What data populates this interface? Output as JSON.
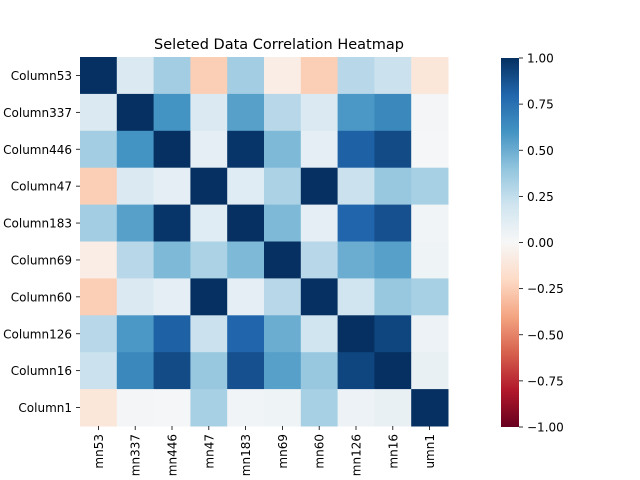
{
  "chart_data": {
    "type": "heatmap",
    "title": "Seleted Data  Correlation Heatmap",
    "xlabel": "",
    "ylabel": "",
    "labels": [
      "Column53",
      "Column337",
      "Column446",
      "Column47",
      "Column183",
      "Column69",
      "Column60",
      "Column126",
      "Column16",
      "Column1"
    ],
    "x_tick_labels_visible": [
      "mn53",
      "mn337",
      "mn446",
      "mn47",
      "mn183",
      "mn69",
      "mn60",
      "mn126",
      "mn16",
      "umn1"
    ],
    "y_tick_labels": [
      "Column53",
      "Column337",
      "Column446",
      "Column47",
      "Column183",
      "Column69",
      "Column60",
      "Column126",
      "Column16",
      "Column1"
    ],
    "matrix": [
      [
        1.0,
        0.15,
        0.35,
        -0.25,
        0.35,
        -0.07,
        -0.25,
        0.28,
        0.22,
        -0.12
      ],
      [
        0.15,
        1.0,
        0.6,
        0.15,
        0.55,
        0.28,
        0.15,
        0.58,
        0.65,
        0.02
      ],
      [
        0.35,
        0.6,
        1.0,
        0.1,
        0.98,
        0.45,
        0.1,
        0.82,
        0.9,
        0.01
      ],
      [
        -0.25,
        0.15,
        0.1,
        1.0,
        0.12,
        0.32,
        1.0,
        0.22,
        0.38,
        0.33
      ],
      [
        0.35,
        0.55,
        0.98,
        0.12,
        1.0,
        0.45,
        0.1,
        0.8,
        0.88,
        0.03
      ],
      [
        -0.07,
        0.28,
        0.45,
        0.32,
        0.45,
        1.0,
        0.28,
        0.5,
        0.55,
        0.05
      ],
      [
        -0.25,
        0.15,
        0.1,
        1.0,
        0.1,
        0.28,
        1.0,
        0.2,
        0.38,
        0.33
      ],
      [
        0.28,
        0.58,
        0.82,
        0.22,
        0.8,
        0.5,
        0.2,
        1.0,
        0.92,
        0.06
      ],
      [
        0.22,
        0.65,
        0.9,
        0.38,
        0.88,
        0.55,
        0.38,
        0.92,
        1.0,
        0.08
      ],
      [
        -0.12,
        0.02,
        0.01,
        0.33,
        0.03,
        0.05,
        0.33,
        0.06,
        0.08,
        1.0
      ]
    ],
    "colorbar": {
      "colormap": "RdBu",
      "vmin": -1.0,
      "vmax": 1.0,
      "ticks": [
        "1.00",
        "0.75",
        "0.50",
        "0.25",
        "0.00",
        "−0.25",
        "−0.50",
        "−0.75",
        "−1.00"
      ]
    },
    "grid": false
  }
}
